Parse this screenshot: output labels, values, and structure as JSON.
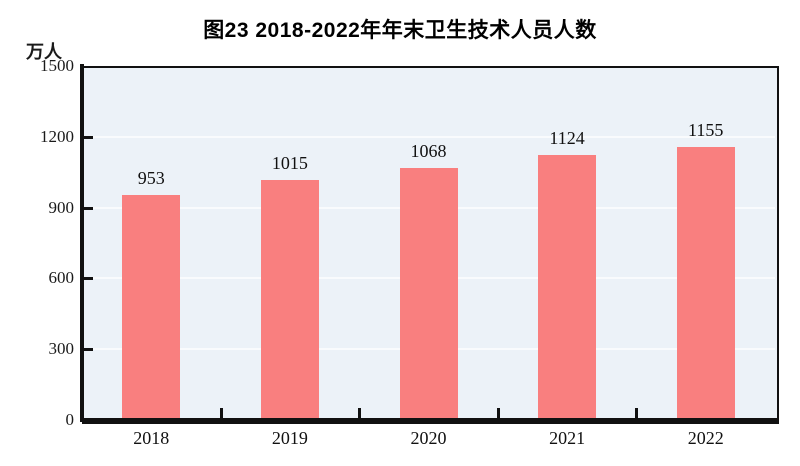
{
  "chart": {
    "title": "图23  2018-2022年年末卫生技术人员人数",
    "unit": "万人"
  },
  "chart_data": {
    "type": "bar",
    "title": "图23  2018-2022年年末卫生技术人员人数",
    "categories": [
      "2018",
      "2019",
      "2020",
      "2021",
      "2022"
    ],
    "values": [
      953,
      1015,
      1068,
      1124,
      1155
    ],
    "xlabel": "",
    "ylabel": "万人",
    "ylim": [
      0,
      1500
    ],
    "yticks": [
      0,
      300,
      600,
      900,
      1200,
      1500
    ],
    "grid": true,
    "legend_position": "none",
    "bar_color": "#f97f7f",
    "plot_background": "#ecf2f8",
    "gridline_color": "#f9fbfd",
    "axis_color": "#111111"
  }
}
